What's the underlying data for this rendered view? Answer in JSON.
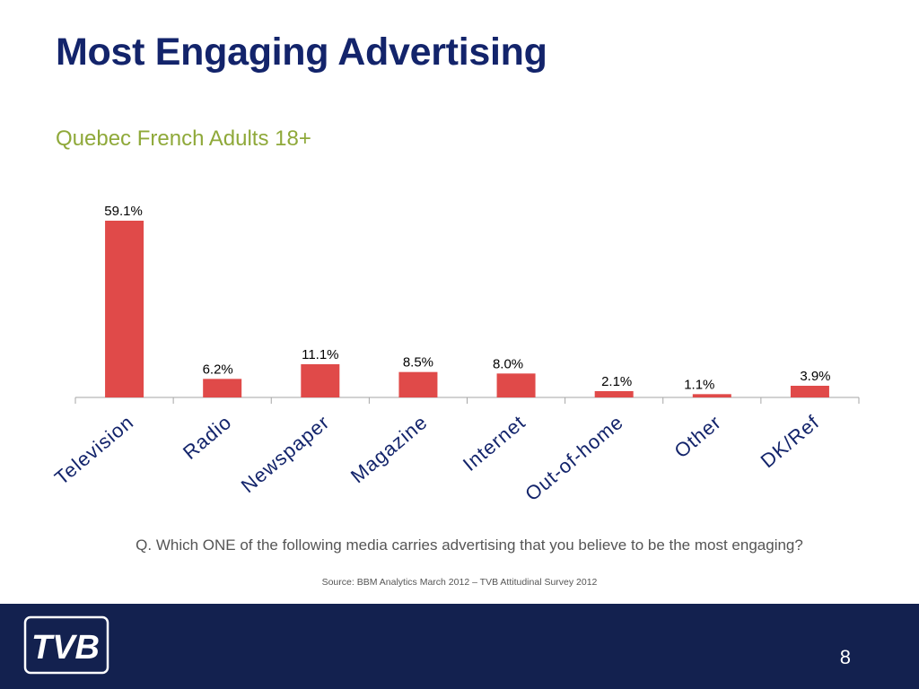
{
  "slide": {
    "title": "Most Engaging Advertising",
    "subtitle": "Quebec French Adults 18+",
    "question": "Q. Which ONE of the following media carries advertising that you believe to be the most engaging?",
    "source": "Source: BBM Analytics March 2012 – TVB Attitudinal Survey 2012",
    "page_number": "8",
    "logo_text": "TVB"
  },
  "colors": {
    "title": "#13246b",
    "subtitle": "#8fa93a",
    "bar": "#e04a49",
    "footer": "#13214f"
  },
  "chart_data": {
    "type": "bar",
    "categories": [
      "Television",
      "Radio",
      "Newspaper",
      "Magazine",
      "Internet",
      "Out-of-home",
      "Other",
      "DK/Ref"
    ],
    "values": [
      59.1,
      6.2,
      11.1,
      8.5,
      8.0,
      2.1,
      1.1,
      3.9
    ],
    "data_labels": [
      "59.1%",
      "6.2%",
      "11.1%",
      "8.5%",
      "8.0%",
      "2.1%",
      "1.1%",
      "3.9%"
    ],
    "value_unit": "%",
    "title": "",
    "xlabel": "",
    "ylabel": "",
    "ylim": [
      0,
      60
    ],
    "y_axis_visible": false,
    "grid": false,
    "legend": "none",
    "x_tick_rotation": -40
  }
}
